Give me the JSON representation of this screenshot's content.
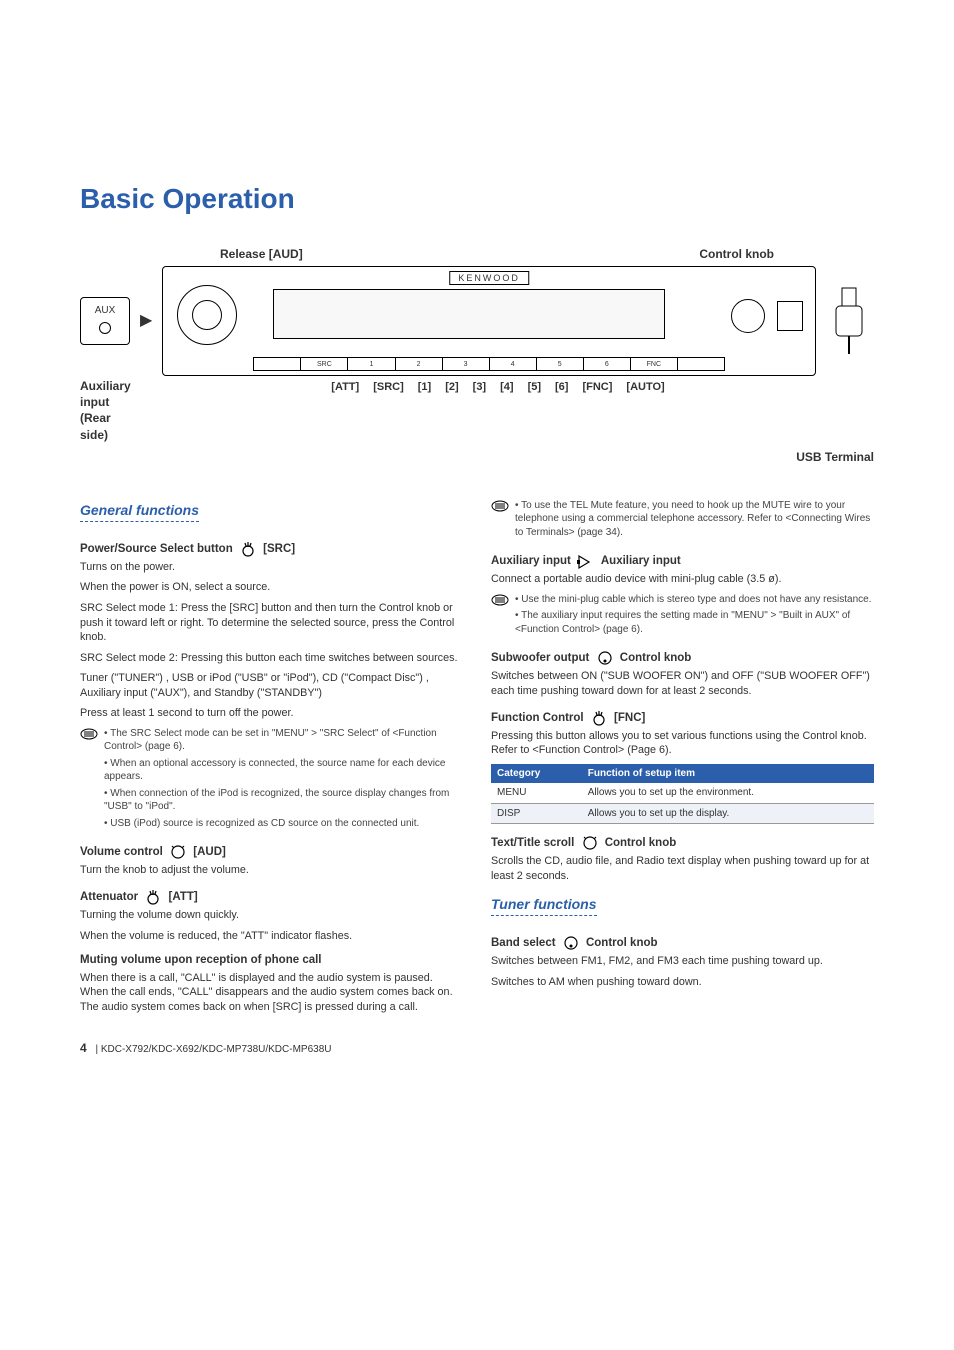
{
  "colors": {
    "accent": "#2b5fab",
    "text": "#333333",
    "tableHeaderBg": "#2b5fab",
    "tableHeaderFg": "#ffffff"
  },
  "title": "Basic Operation",
  "device": {
    "topLabels": {
      "release": "Release  [AUD]",
      "knob": "Control knob"
    },
    "auxBox": "AUX",
    "brand": "KENWOOD",
    "btnRow": [
      "",
      "SRC",
      "1",
      "2",
      "3",
      "4",
      "5",
      "6",
      "FNC",
      ""
    ],
    "bottomLabels": [
      "[ATT]",
      "[SRC]",
      "[1]",
      "[2]",
      "[3]",
      "[4]",
      "[5]",
      "[6]",
      "[FNC]",
      "[AUTO]"
    ],
    "auxInputLabel": "Auxiliary input",
    "rearSide": "(Rear side)",
    "usbTerminal": "USB Terminal"
  },
  "left": {
    "sectionHead": "General functions",
    "powerSrc": {
      "label": "Power/Source Select button",
      "tag": "[SRC]",
      "p1": "Turns on the power.",
      "p2": "When the power is ON, select a source.",
      "p3": "SRC Select mode 1: Press the [SRC] button and then turn the Control knob or push it toward left or right. To determine the selected source, press the Control knob.",
      "p4": "SRC Select mode 2: Pressing this button each time switches between sources.",
      "p5": "Tuner (\"TUNER\") , USB or iPod (\"USB\" or \"iPod\"), CD (\"Compact Disc\") , Auxiliary input (\"AUX\"), and Standby (\"STANDBY\")",
      "p6": "Press at least 1 second to turn off the power.",
      "notes": [
        "The SRC Select mode can be set in \"MENU\" > \"SRC Select\" of <Function Control> (page 6).",
        "When an optional accessory is connected, the source name for each device appears.",
        "When connection of the iPod is recognized, the source display changes from \"USB\" to \"iPod\".",
        "USB (iPod) source is recognized as CD source on the connected unit."
      ]
    },
    "volume": {
      "label": "Volume control",
      "tag": "[AUD]",
      "p": "Turn the knob to adjust the volume."
    },
    "att": {
      "label": "Attenuator",
      "tag": "[ATT]",
      "p1": "Turning the volume down quickly.",
      "p2": "When the volume is reduced, the \"ATT\" indicator flashes."
    },
    "mute": {
      "label": "Muting volume upon reception of phone call",
      "p": "When there is a call, \"CALL\" is displayed and the audio system is paused. When the call ends, \"CALL\" disappears and the audio system comes back on. The audio system comes back on when [SRC] is pressed during a call."
    }
  },
  "right": {
    "telNote": [
      "To use the TEL Mute feature, you need to hook up the MUTE wire to your telephone using a commercial telephone accessory.  Refer to <Connecting Wires to Terminals> (page 34)."
    ],
    "auxIn": {
      "label": "Auxiliary input",
      "tag": "Auxiliary input",
      "p": "Connect a portable audio device with mini-plug cable (3.5 ø).",
      "notes": [
        "Use the mini-plug cable which is stereo type and does not have any resistance.",
        "The auxiliary input requires the setting made in \"MENU\" > \"Built in AUX\" of <Function Control> (page 6)."
      ]
    },
    "sub": {
      "label": "Subwoofer output",
      "tag": "Control knob",
      "p": "Switches between ON (\"SUB WOOFER ON\") and OFF (\"SUB WOOFER OFF\") each time pushing toward down for at least 2 seconds."
    },
    "fnc": {
      "label": "Function Control",
      "tag": "[FNC]",
      "p": "Pressing this button allows you to set various functions using the Control knob. Refer to <Function Control> (Page 6).",
      "tableHead": {
        "c1": "Category",
        "c2": "Function of setup item"
      },
      "tableRows": [
        {
          "c1": "MENU",
          "c2": "Allows you to set up the environment."
        },
        {
          "c1": "DISP",
          "c2": "Allows you to set up the display."
        }
      ]
    },
    "scroll": {
      "label": "Text/Title scroll",
      "tag": "Control knob",
      "p": "Scrolls the CD, audio file, and Radio text display when pushing toward up for at least 2 seconds."
    },
    "tunerHead": "Tuner functions",
    "band": {
      "label": "Band select",
      "tag": "Control knob",
      "p1": "Switches between FM1, FM2, and FM3 each time pushing toward up.",
      "p2": "Switches to AM when pushing toward down."
    }
  },
  "footer": {
    "page": "4",
    "models": "KDC-X792/KDC-X692/KDC-MP738U/KDC-MP638U"
  }
}
